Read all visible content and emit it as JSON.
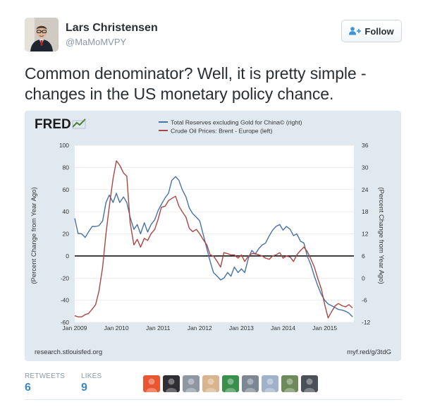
{
  "author": {
    "name": "Lars Christensen",
    "handle": "@MaMoMVPY"
  },
  "follow_label": "Follow",
  "tweet_text": "Common denominator? Well, it is pretty simple - changes in the US monetary policy chance.",
  "chart_data": {
    "type": "line",
    "brand": "FRED",
    "source_left": "research.stlouisfed.org",
    "source_right": "myf.red/g/3tdG",
    "ylabel_left": "(Percent Change from Year Ago)",
    "ylabel_right": "(Percent Change from Year Ago)",
    "ylim_left": [
      -60,
      100
    ],
    "ylim_right": [
      -12,
      36
    ],
    "yticks_left": [
      "100",
      "80",
      "60",
      "40",
      "20",
      "0",
      "-20",
      "-40",
      "-60"
    ],
    "yticks_right": [
      "36",
      "30",
      "24",
      "18",
      "12",
      "6",
      "0",
      "-6",
      "-12"
    ],
    "xticks": [
      "Jan 2009",
      "Jan 2010",
      "Jan 2011",
      "Jan 2012",
      "Jan 2013",
      "Jan 2014",
      "Jan 2015"
    ],
    "xlim": [
      2009.0,
      2015.7
    ],
    "zero_line": true,
    "legend_position": "top",
    "series": [
      {
        "name": "Total Reserves excluding Gold for China© (right)",
        "axis": "right",
        "color": "#4572a7",
        "x": [
          2009.0,
          2009.08,
          2009.17,
          2009.25,
          2009.33,
          2009.42,
          2009.5,
          2009.58,
          2009.67,
          2009.75,
          2009.83,
          2009.92,
          2010.0,
          2010.08,
          2010.17,
          2010.25,
          2010.33,
          2010.42,
          2010.5,
          2010.58,
          2010.67,
          2010.75,
          2010.83,
          2010.92,
          2011.0,
          2011.08,
          2011.17,
          2011.25,
          2011.33,
          2011.42,
          2011.5,
          2011.58,
          2011.67,
          2011.75,
          2011.83,
          2011.92,
          2012.0,
          2012.08,
          2012.17,
          2012.25,
          2012.33,
          2012.42,
          2012.5,
          2012.58,
          2012.67,
          2012.75,
          2012.83,
          2012.92,
          2013.0,
          2013.08,
          2013.17,
          2013.25,
          2013.33,
          2013.42,
          2013.5,
          2013.58,
          2013.67,
          2013.75,
          2013.83,
          2013.92,
          2014.0,
          2014.08,
          2014.17,
          2014.25,
          2014.33,
          2014.42,
          2014.5,
          2014.58,
          2014.67,
          2014.75,
          2014.83,
          2014.92,
          2015.0,
          2015.08,
          2015.17,
          2015.25,
          2015.33,
          2015.42,
          2015.5,
          2015.58,
          2015.67
        ],
        "values": [
          16.2,
          12.1,
          12.0,
          11.0,
          12.5,
          14.0,
          14.0,
          14.2,
          15.5,
          20.5,
          22.5,
          20.5,
          23.0,
          20.5,
          22.0,
          20.5,
          16.5,
          13.2,
          14.5,
          12.0,
          15.0,
          12.5,
          14.5,
          15.8,
          18.3,
          20.0,
          21.8,
          23.0,
          26.5,
          27.5,
          26.5,
          24.0,
          22.0,
          19.0,
          17.5,
          16.5,
          15.5,
          12.0,
          8.0,
          4.5,
          1.5,
          0.5,
          -0.5,
          0.0,
          1.5,
          0.5,
          3.0,
          1.5,
          2.5,
          1.5,
          5.5,
          7.5,
          6.5,
          8.0,
          9.0,
          9.5,
          11.5,
          13.0,
          14.0,
          14.5,
          13.0,
          14.0,
          13.2,
          11.5,
          12.0,
          10.0,
          9.5,
          6.0,
          3.5,
          0.5,
          -2.0,
          -4.5,
          -6.0,
          -7.0,
          -7.5,
          -8.0,
          -8.5,
          -8.7,
          -9.0,
          -9.5,
          -10.5
        ]
      },
      {
        "name": "Crude Oil Prices: Brent - Europe (left)",
        "axis": "left",
        "color": "#aa4643",
        "x": [
          2009.0,
          2009.08,
          2009.17,
          2009.25,
          2009.33,
          2009.42,
          2009.5,
          2009.58,
          2009.67,
          2009.75,
          2009.83,
          2009.92,
          2010.0,
          2010.08,
          2010.17,
          2010.25,
          2010.33,
          2010.42,
          2010.5,
          2010.58,
          2010.67,
          2010.75,
          2010.83,
          2010.92,
          2011.0,
          2011.08,
          2011.17,
          2011.25,
          2011.33,
          2011.42,
          2011.5,
          2011.58,
          2011.67,
          2011.75,
          2011.83,
          2011.92,
          2012.0,
          2012.08,
          2012.17,
          2012.25,
          2012.33,
          2012.42,
          2012.5,
          2012.58,
          2012.67,
          2012.75,
          2012.83,
          2012.92,
          2013.0,
          2013.08,
          2013.17,
          2013.25,
          2013.33,
          2013.42,
          2013.5,
          2013.58,
          2013.67,
          2013.75,
          2013.83,
          2013.92,
          2014.0,
          2014.08,
          2014.17,
          2014.25,
          2014.33,
          2014.42,
          2014.5,
          2014.58,
          2014.67,
          2014.75,
          2014.83,
          2014.92,
          2015.0,
          2015.08,
          2015.17,
          2015.25,
          2015.33,
          2015.42,
          2015.5,
          2015.58,
          2015.67
        ],
        "values": [
          -54,
          -55,
          -55,
          -53,
          -52,
          -48,
          -44,
          -32,
          -10,
          20,
          45,
          70,
          86,
          82,
          75,
          72,
          30,
          10,
          15,
          8,
          16,
          14,
          20,
          24,
          33,
          44,
          45,
          50,
          52,
          54,
          45,
          40,
          35,
          25,
          22,
          24,
          20,
          15,
          10,
          1,
          0,
          -5,
          -10,
          3,
          2,
          1,
          1,
          -2,
          1,
          -5,
          0,
          2,
          2,
          1,
          0,
          -2,
          -3,
          0,
          1,
          3,
          -2,
          0,
          -1,
          -5,
          1,
          5,
          8,
          4,
          -3,
          -10,
          -20,
          -30,
          -44,
          -56,
          -50,
          -45,
          -43,
          -45,
          -46,
          -44,
          -47
        ]
      }
    ]
  },
  "stats": {
    "retweets_label": "RETWEETS",
    "retweets_value": "6",
    "likes_label": "LIKES",
    "likes_value": "9"
  },
  "likers": [
    {
      "icon": "liker-avatar-1",
      "color": "#e8552f"
    },
    {
      "icon": "liker-avatar-2",
      "color": "#2f2f33"
    },
    {
      "icon": "liker-avatar-3",
      "color": "#8f97a3"
    },
    {
      "icon": "liker-avatar-4",
      "color": "#d9b48e"
    },
    {
      "icon": "liker-avatar-5",
      "color": "#3a8f4a"
    },
    {
      "icon": "liker-avatar-6",
      "color": "#7c8793"
    },
    {
      "icon": "liker-avatar-7",
      "color": "#9fb2c9"
    },
    {
      "icon": "liker-avatar-8",
      "color": "#6e8a5a"
    },
    {
      "icon": "liker-avatar-9",
      "color": "#4b4f57"
    }
  ]
}
